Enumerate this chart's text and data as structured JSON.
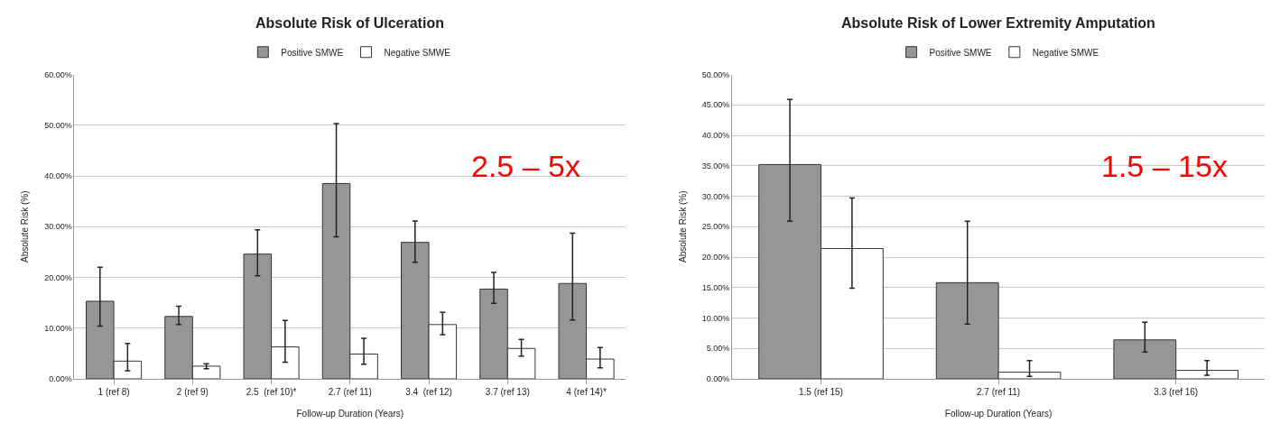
{
  "chart_data": [
    {
      "type": "bar",
      "title": "Absolute Risk of Ulceration",
      "xlabel": "Follow-up Duration (Years)",
      "ylabel": "Absolute Risk (%)",
      "categories": [
        "1 (ref 8)",
        "2 (ref 9)",
        "2.5  (ref 10)*",
        "2.7 (ref 11)",
        "3.4  (ref 12)",
        "3.7 (ref 13)",
        "4 (ref 14)*"
      ],
      "series": [
        {
          "name": "Positive SMWE",
          "color": "#969696",
          "values": [
            15.3,
            12.3,
            24.6,
            38.5,
            26.9,
            17.7,
            18.8
          ],
          "errors": [
            [
              10.4,
              22
            ],
            [
              10.7,
              14.3
            ],
            [
              20.3,
              29.4
            ],
            [
              28,
              50.3
            ],
            [
              23,
              31.1
            ],
            [
              14.9,
              21
            ],
            [
              11.6,
              28.7
            ]
          ]
        },
        {
          "name": "Negative SMWE",
          "color": "#ffffff",
          "values": [
            3.5,
            2.5,
            6.3,
            4.9,
            10.7,
            6,
            3.9
          ],
          "errors": [
            [
              1.6,
              7
            ],
            [
              2,
              3
            ],
            [
              3.3,
              11.5
            ],
            [
              2.9,
              8
            ],
            [
              8.7,
              13.1
            ],
            [
              4.5,
              7.8
            ],
            [
              2.2,
              6.2
            ]
          ]
        }
      ],
      "ylim": [
        0,
        60
      ],
      "yticks": [
        {
          "value": 0,
          "label": "0.00%"
        },
        {
          "value": 10,
          "label": "10.00%"
        },
        {
          "value": 20,
          "label": "20.00%"
        },
        {
          "value": 30,
          "label": "30.00%"
        },
        {
          "value": 40,
          "label": "40.00%"
        },
        {
          "value": 50,
          "label": "50.00%"
        },
        {
          "value": 60,
          "label": "60.00%"
        }
      ],
      "grid": "y",
      "legend": "top",
      "annotations": [
        "2.5 – 5x"
      ]
    },
    {
      "type": "bar",
      "title": "Absolute Risk of Lower Extremity Amputation",
      "xlabel": "Follow-up Duration (Years)",
      "ylabel": "Absolute Risk (%)",
      "categories": [
        "1.5 (ref 15)",
        "2.7 (ref 11)",
        "3.3 (ref 16)"
      ],
      "series": [
        {
          "name": "Positive SMWE",
          "color": "#969696",
          "values": [
            35.2,
            15.8,
            6.4
          ],
          "errors": [
            [
              25.9,
              45.9
            ],
            [
              9,
              25.9
            ],
            [
              4.4,
              9.3
            ]
          ]
        },
        {
          "name": "Negative SMWE",
          "color": "#ffffff",
          "values": [
            21.4,
            1.1,
            1.4
          ],
          "errors": [
            [
              14.9,
              29.7
            ],
            [
              0.4,
              3
            ],
            [
              0.6,
              3
            ]
          ]
        }
      ],
      "ylim": [
        0,
        50
      ],
      "yticks": [
        {
          "value": 0,
          "label": "0.00%"
        },
        {
          "value": 5,
          "label": "5.00%"
        },
        {
          "value": 10,
          "label": "10.00%"
        },
        {
          "value": 15,
          "label": "15.00%"
        },
        {
          "value": 20,
          "label": "20.00%"
        },
        {
          "value": 25,
          "label": "25.00%"
        },
        {
          "value": 30,
          "label": "30.00%"
        },
        {
          "value": 35,
          "label": "35.00%"
        },
        {
          "value": 40,
          "label": "40.00%"
        },
        {
          "value": 45,
          "label": "45.00%"
        },
        {
          "value": 50,
          "label": "50.00%"
        }
      ],
      "grid": "y",
      "legend": "top",
      "annotations": [
        "1.5 – 15x"
      ]
    }
  ]
}
